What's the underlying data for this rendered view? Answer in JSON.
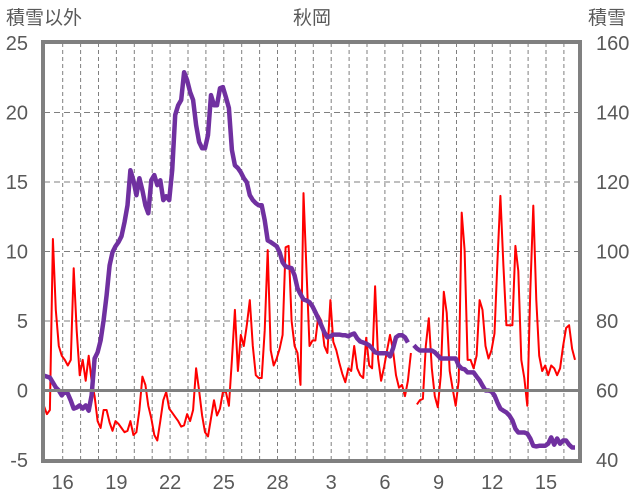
{
  "chart_data": {
    "type": "line",
    "title": "秋岡",
    "ylabel_left": "積雪以外",
    "ylabel_right": "積雪",
    "xlabel": "",
    "x_unit": "days from tick '16'",
    "xlim": [
      -1.05,
      28.85
    ],
    "ylim_left": [
      -5,
      25
    ],
    "ylim_right": [
      40,
      160
    ],
    "yticks_left": [
      "25",
      "20",
      "15",
      "10",
      "5",
      "0",
      "-5"
    ],
    "yticks_left_values": [
      25,
      20,
      15,
      10,
      5,
      0,
      -5
    ],
    "yticks_right": [
      "160",
      "140",
      "120",
      "100",
      "80",
      "60",
      "40"
    ],
    "yticks_right_values": [
      160,
      140,
      120,
      100,
      80,
      60,
      40
    ],
    "xticks": [
      "16",
      "19",
      "22",
      "25",
      "28",
      "3",
      "6",
      "9",
      "12",
      "15"
    ],
    "xticks_values": [
      0,
      3,
      6,
      9,
      12,
      15,
      18,
      21,
      24,
      27
    ],
    "grid": true,
    "legend": "none",
    "colors": {
      "other": "#ff0000",
      "snow": "#7030a0",
      "frame": "#808080",
      "grid": "#7f7f7f"
    },
    "series": [
      {
        "name": "積雪以外",
        "axis": "left",
        "x_start": -1.05,
        "x_step": 0.1667,
        "values": [
          -1.1,
          -1.7,
          -1.4,
          10.9,
          5.8,
          3.2,
          2.5,
          2.2,
          1.8,
          2.2,
          8.8,
          4.3,
          1.1,
          2.2,
          0.7,
          2.5,
          0.7,
          -0.4,
          -2.2,
          -2.7,
          -1.4,
          -1.4,
          -2.3,
          -2.9,
          -2.2,
          -2.4,
          -2.7,
          -3.0,
          -2.9,
          -2.2,
          -3.2,
          -3.0,
          -1.4,
          1.0,
          0.4,
          -1.1,
          -2.0,
          -3.2,
          -3.6,
          -2.2,
          -0.7,
          -0.1,
          -1.3,
          -1.6,
          -1.9,
          -2.2,
          -2.6,
          -2.5,
          -1.7,
          -2.2,
          -1.4,
          1.6,
          0,
          -1.8,
          -3.0,
          -3.3,
          -2.0,
          -0.7,
          -1.8,
          -1.3,
          -0.1,
          -0.1,
          -1.1,
          2.2,
          5.8,
          1.4,
          4.0,
          3.2,
          4.7,
          6.5,
          3.2,
          1.1,
          0.9,
          0.9,
          4.3,
          10.1,
          2.9,
          1.8,
          2.3,
          3.0,
          4.0,
          10.3,
          10.4,
          5.0,
          3.2,
          2.7,
          0.4,
          14.2,
          8.6,
          3.2,
          3.6,
          3.6,
          5.4,
          5.0,
          3.2,
          2.7,
          6.5,
          3.5,
          2.9,
          2.0,
          1.2,
          0.6,
          1.6,
          1.4,
          3.2,
          1.6,
          1.1,
          0.9,
          3.8,
          1.8,
          1.6,
          7.5,
          2.3,
          0.7,
          1.7,
          2.9,
          4.0,
          2.9,
          1.1,
          0.2,
          0.4,
          -0.4,
          0.7,
          2.7,
          null,
          -1.0,
          -0.7,
          -0.6,
          3.2,
          5.2,
          1.6,
          -0.4,
          -1.2,
          1.1,
          7.1,
          5.6,
          1.4,
          0.1,
          -1.1,
          0.7,
          12.8,
          10.1,
          2.2,
          2.2,
          1.6,
          2.5,
          6.5,
          5.8,
          3.2,
          2.3,
          2.9,
          4.1,
          9.4,
          14.0,
          9.0,
          4.7,
          4.7,
          4.7,
          10.4,
          8.6,
          2.2,
          0.9,
          -1.1,
          7.2,
          13.3,
          6.5,
          2.5,
          1.4,
          1.8,
          1.1,
          1.8,
          1.6,
          1.1,
          1.6,
          3.2,
          4.5,
          4.7,
          3.0,
          2.2
        ]
      },
      {
        "name": "積雪",
        "axis": "right",
        "x_start": -1.05,
        "x_step": 0.1667,
        "values": [
          64.3,
          64.0,
          63.7,
          62.3,
          60.9,
          60.0,
          58.6,
          59.7,
          59.1,
          57.1,
          54.8,
          55.1,
          55.7,
          54.8,
          55.7,
          54.2,
          58.6,
          69.2,
          71.0,
          74.4,
          80.2,
          87.4,
          96.0,
          99.8,
          101.5,
          102.7,
          104.4,
          108.4,
          113.3,
          123.4,
          120.5,
          116.2,
          121.1,
          117.6,
          113.3,
          111.0,
          120.5,
          122.0,
          119.1,
          120.5,
          114.8,
          115.9,
          114.8,
          123.4,
          139.3,
          142.1,
          143.6,
          151.6,
          149.3,
          145.9,
          143.6,
          136.4,
          131.5,
          129.7,
          129.7,
          133.5,
          145.0,
          142.1,
          142.1,
          147.0,
          147.3,
          144.4,
          141.3,
          129.2,
          124.8,
          124.0,
          122.8,
          121.1,
          119.9,
          116.2,
          114.8,
          113.9,
          113.3,
          113.3,
          109.0,
          103.2,
          102.7,
          102.1,
          101.5,
          99.8,
          96.9,
          95.7,
          95.4,
          95.2,
          93.1,
          89.4,
          87.7,
          86.2,
          85.9,
          85.4,
          84.2,
          82.5,
          80.7,
          78.7,
          76.7,
          75.3,
          75.6,
          76.1,
          76.1,
          76.1,
          75.9,
          75.9,
          75.6,
          76.1,
          76.4,
          75.0,
          74.1,
          73.8,
          73.5,
          73.0,
          72.1,
          71.0,
          70.7,
          70.7,
          70.7,
          70.7,
          69.8,
          72.1,
          75.3,
          75.9,
          75.9,
          75.3,
          73.8,
          null,
          73.0,
          72.1,
          71.5,
          71.5,
          71.5,
          71.5,
          71.5,
          71.0,
          70.1,
          69.2,
          69.2,
          69.2,
          69.2,
          69.2,
          69.2,
          67.2,
          66.3,
          66.1,
          65.2,
          65.2,
          65.2,
          64.0,
          62.9,
          61.4,
          60.0,
          60.0,
          59.7,
          58.6,
          56.5,
          54.8,
          54.2,
          53.7,
          52.8,
          51.4,
          49.0,
          47.9,
          47.9,
          47.9,
          47.6,
          46.2,
          44.1,
          43.9,
          44.1,
          44.1,
          44.1,
          44.7,
          46.5,
          44.4,
          46.2,
          44.7,
          45.6,
          45.6,
          44.4,
          43.6,
          43.6
        ]
      }
    ]
  }
}
